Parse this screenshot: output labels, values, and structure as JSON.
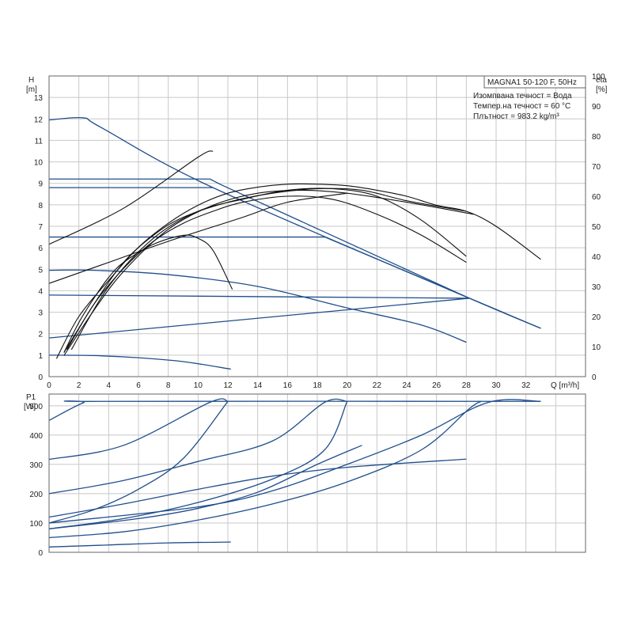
{
  "info": {
    "model": "MAGNA1 50-120 F, 50Hz",
    "line1": "Изомпвана течност = Вода",
    "line2": "Темпер.на течност = 60 °C",
    "line3": "Плътност = 983.2 kg/m³"
  },
  "chart_data": [
    {
      "type": "line",
      "name": "head-efficiency",
      "ylabel_left": [
        "H",
        "[m]"
      ],
      "ylabel_right": [
        "eta",
        "[%]"
      ],
      "xlabel": "Q [m³/h]",
      "xlim": [
        0,
        36
      ],
      "ylim": [
        0,
        14
      ],
      "y2lim": [
        0,
        100
      ],
      "x_ticks": [
        0,
        2,
        4,
        6,
        8,
        10,
        12,
        14,
        16,
        18,
        20,
        22,
        24,
        26,
        28,
        30,
        32
      ],
      "y_ticks": [
        0,
        1,
        2,
        3,
        4,
        5,
        6,
        7,
        8,
        9,
        10,
        11,
        12,
        13
      ],
      "y2_ticks": [
        0,
        10,
        20,
        30,
        40,
        50,
        60,
        70,
        80,
        90,
        100
      ],
      "series": [
        {
          "role": "head",
          "points": [
            [
              0,
              11.95
            ],
            [
              2.3,
              12.05
            ],
            [
              3.5,
              11.6
            ],
            [
              11,
              8.8
            ],
            [
              28.2,
              3.65
            ],
            [
              33,
              2.25
            ]
          ]
        },
        {
          "role": "head",
          "points": [
            [
              0,
              9.2
            ],
            [
              10.8,
              9.2
            ],
            [
              11.5,
              8.95
            ],
            [
              28.2,
              3.65
            ]
          ]
        },
        {
          "role": "head",
          "points": [
            [
              0,
              8.8
            ],
            [
              11,
              8.8
            ]
          ]
        },
        {
          "role": "head",
          "points": [
            [
              0,
              6.5
            ],
            [
              18.5,
              6.5
            ],
            [
              33,
              2.25
            ]
          ]
        },
        {
          "role": "head",
          "points": [
            [
              0,
              3.8
            ],
            [
              28.2,
              3.65
            ]
          ]
        },
        {
          "role": "head",
          "points": [
            [
              0,
              1.8
            ],
            [
              28.2,
              3.65
            ]
          ]
        },
        {
          "role": "head",
          "points": [
            [
              0,
              4.95
            ],
            [
              3,
              4.95
            ],
            [
              8,
              4.75
            ],
            [
              14,
              4.2
            ],
            [
              20,
              3.2
            ],
            [
              25,
              2.4
            ],
            [
              28,
              1.6
            ]
          ]
        },
        {
          "role": "head",
          "points": [
            [
              0,
              1.0
            ],
            [
              3,
              0.98
            ],
            [
              6,
              0.88
            ],
            [
              9,
              0.7
            ],
            [
              12.2,
              0.35
            ]
          ]
        },
        {
          "role": "efficiency",
          "points": [
            [
              0,
              31
            ],
            [
              4,
              38
            ],
            [
              8,
              45
            ],
            [
              13,
              53
            ],
            [
              16,
              58
            ],
            [
              20,
              61
            ]
          ]
        },
        {
          "role": "efficiency",
          "points": [
            [
              0,
              44
            ],
            [
              5,
              56
            ],
            [
              10,
              73
            ],
            [
              11,
              75
            ]
          ]
        },
        {
          "role": "efficiency",
          "points": [
            [
              0.5,
              6
            ],
            [
              2,
              20
            ],
            [
              4,
              32
            ],
            [
              6,
              43
            ],
            [
              8,
              51
            ],
            [
              10,
              57
            ],
            [
              12,
              61
            ],
            [
              14,
              63
            ],
            [
              16,
              64
            ],
            [
              18,
              64
            ],
            [
              20,
              63.5
            ],
            [
              22,
              62
            ],
            [
              24,
              60
            ],
            [
              26,
              57
            ],
            [
              28,
              55
            ],
            [
              30,
              50
            ],
            [
              33,
              39
            ]
          ]
        },
        {
          "role": "efficiency",
          "points": [
            [
              1,
              8
            ],
            [
              3,
              24
            ],
            [
              5,
              38
            ],
            [
              7,
              47
            ],
            [
              9,
              53
            ],
            [
              12,
              58
            ],
            [
              15,
              61
            ],
            [
              18,
              62.5
            ],
            [
              21,
              62
            ],
            [
              24,
              58.5
            ],
            [
              28,
              55
            ]
          ]
        },
        {
          "role": "efficiency",
          "points": [
            [
              1.2,
              9
            ],
            [
              3,
              24
            ],
            [
              5,
              36
            ],
            [
              7,
              45
            ],
            [
              9,
              51
            ],
            [
              11,
              55
            ],
            [
              13,
              58
            ],
            [
              16,
              60
            ],
            [
              19,
              59
            ],
            [
              22,
              54
            ],
            [
              25,
              47
            ],
            [
              28,
              38
            ]
          ]
        },
        {
          "role": "efficiency",
          "points": [
            [
              1,
              8
            ],
            [
              2,
              18
            ],
            [
              3,
              26
            ],
            [
              4,
              33
            ],
            [
              5,
              38
            ],
            [
              7,
              44
            ],
            [
              9,
              47
            ],
            [
              10,
              46
            ],
            [
              11,
              42
            ],
            [
              12.3,
              29
            ]
          ]
        },
        {
          "role": "efficiency",
          "points": [
            [
              1,
              7
            ],
            [
              3,
              22
            ],
            [
              5,
              35
            ],
            [
              8,
              49
            ],
            [
              11,
              57
            ],
            [
              14,
              61
            ],
            [
              17,
              62
            ],
            [
              20,
              61
            ],
            [
              24,
              58
            ],
            [
              28.5,
              54
            ]
          ]
        },
        {
          "role": "efficiency",
          "points": [
            [
              1.5,
              9
            ],
            [
              4,
              30
            ],
            [
              7,
              46
            ],
            [
              10,
              55
            ],
            [
              13,
              59
            ],
            [
              16,
              62
            ],
            [
              19,
              62.5
            ],
            [
              22,
              60
            ],
            [
              25,
              52
            ],
            [
              28,
              40
            ]
          ]
        }
      ]
    },
    {
      "type": "line",
      "name": "power",
      "ylabel": [
        "P1",
        "[W]"
      ],
      "xlim": [
        0,
        36
      ],
      "ylim": [
        0,
        540
      ],
      "y_ticks": [
        0,
        100,
        200,
        300,
        400,
        500
      ],
      "series": [
        {
          "points": [
            [
              0,
              450
            ],
            [
              2.3,
              510
            ],
            [
              3.5,
              515
            ],
            [
              33,
              515
            ]
          ]
        },
        {
          "points": [
            [
              0,
              317
            ],
            [
              5,
              365
            ],
            [
              10.8,
              512
            ],
            [
              12,
              515
            ]
          ]
        },
        {
          "points": [
            [
              0,
              200
            ],
            [
              5,
              245
            ],
            [
              10,
              310
            ],
            [
              15,
              380
            ],
            [
              18.5,
              512
            ],
            [
              20,
              515
            ]
          ]
        },
        {
          "points": [
            [
              0,
              100
            ],
            [
              3,
              145
            ],
            [
              6,
              215
            ],
            [
              9,
              320
            ],
            [
              12,
              515
            ]
          ]
        },
        {
          "points": [
            [
              0,
              80
            ],
            [
              5,
              115
            ],
            [
              10,
              170
            ],
            [
              15,
              250
            ],
            [
              18.5,
              350
            ],
            [
              20,
              515
            ]
          ]
        },
        {
          "points": [
            [
              0,
              50
            ],
            [
              5,
              70
            ],
            [
              10,
              110
            ],
            [
              15,
              165
            ],
            [
              20,
              240
            ],
            [
              25,
              350
            ],
            [
              28.2,
              490
            ],
            [
              29,
              515
            ]
          ]
        },
        {
          "points": [
            [
              0,
              120
            ],
            [
              5,
              165
            ],
            [
              10,
              215
            ],
            [
              15,
              260
            ],
            [
              20,
              290
            ],
            [
              28,
              318
            ]
          ]
        },
        {
          "points": [
            [
              0,
              100
            ],
            [
              10,
              155
            ],
            [
              15,
              210
            ],
            [
              20,
              300
            ],
            [
              25,
              400
            ],
            [
              29.5,
              512
            ],
            [
              33,
              515
            ]
          ]
        },
        {
          "points": [
            [
              0,
              18
            ],
            [
              4,
              25
            ],
            [
              8,
              32
            ],
            [
              12.2,
              35
            ]
          ]
        },
        {
          "points": [
            [
              0,
              80
            ],
            [
              6,
              115
            ],
            [
              10,
              150
            ],
            [
              14,
              205
            ],
            [
              18,
              300
            ],
            [
              21,
              365
            ]
          ]
        }
      ]
    }
  ]
}
